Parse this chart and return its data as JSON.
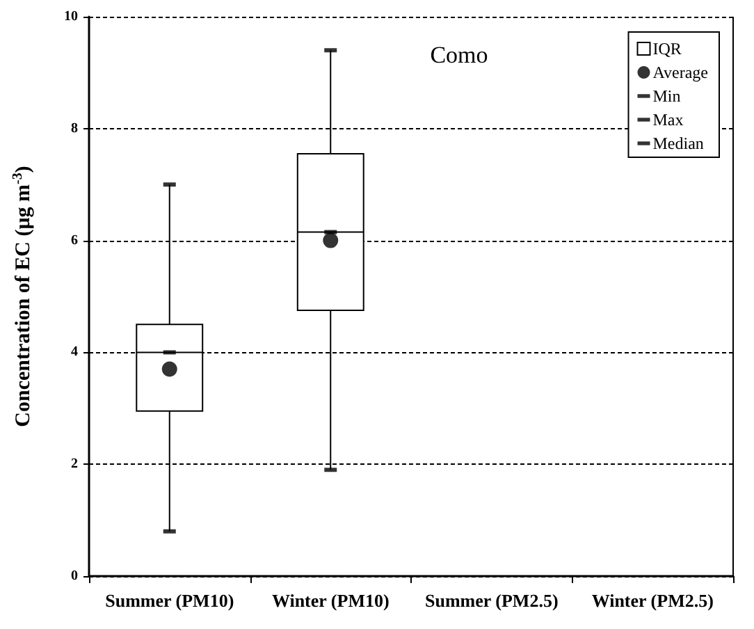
{
  "chart_data": {
    "type": "box",
    "title": "Como",
    "ylabel": "Concentration of EC (μg m$^{-3}$)",
    "categories": [
      "Summer (PM10)",
      "Winter (PM10)",
      "Summer (PM2.5)",
      "Winter (PM2.5)"
    ],
    "ylim": [
      0,
      10
    ],
    "yticks": [
      0,
      2,
      4,
      6,
      8,
      10
    ],
    "grid": "y",
    "legend": "top right",
    "series": [
      {
        "name": "IQR",
        "color": "#000000",
        "boxes": [
          {
            "low": 0.8,
            "q1": 2.95,
            "median": 4.0,
            "q3": 4.5,
            "high": 7.0
          },
          {
            "low": 1.9,
            "q1": 4.75,
            "median": 6.15,
            "q3": 7.55,
            "high": 9.4
          },
          null,
          null
        ]
      },
      {
        "name": "Average",
        "type": "scatter",
        "marker": "circle",
        "color": "#000000",
        "values": [
          3.7,
          6.0,
          null,
          null
        ]
      },
      {
        "name": "Min",
        "type": "scatter",
        "color": "#000000",
        "values": [
          0.8,
          1.9,
          null,
          null
        ]
      },
      {
        "name": "Max",
        "type": "scatter",
        "color": "#000000",
        "values": [
          7.0,
          9.4,
          null,
          null
        ]
      },
      {
        "name": "Median",
        "type": "scatter",
        "color": "#000000",
        "values": [
          4.0,
          6.15,
          null,
          null
        ]
      }
    ]
  }
}
